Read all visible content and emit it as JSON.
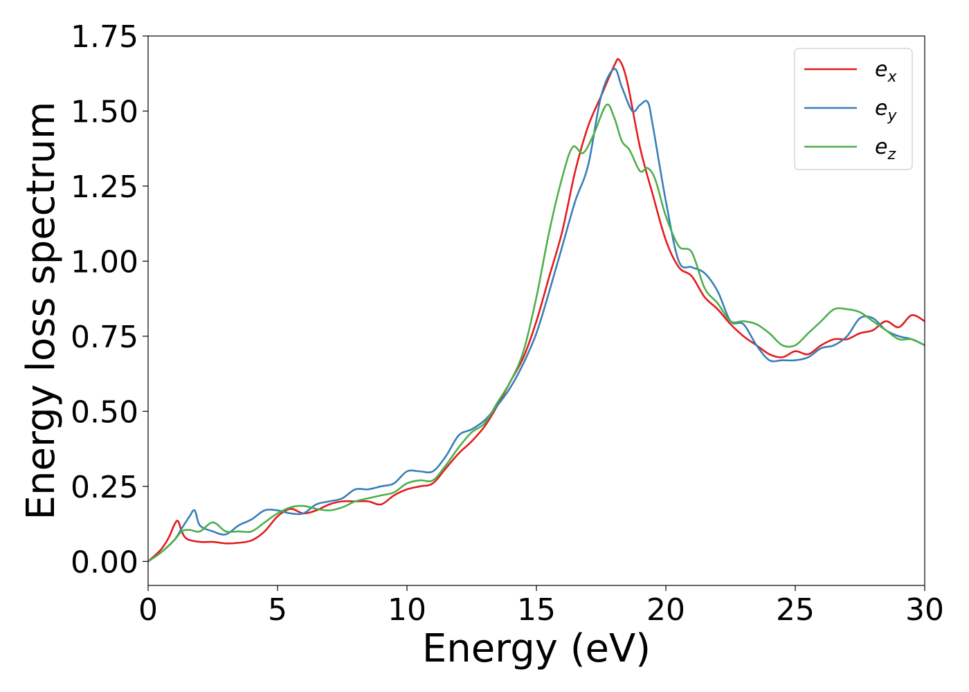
{
  "chart_data": {
    "type": "line",
    "title": "",
    "xlabel": "Energy (eV)",
    "ylabel": "Energy loss spectrum",
    "xlim": [
      0,
      30
    ],
    "ylim": [
      -0.08,
      1.75
    ],
    "xticks": [
      0,
      5,
      10,
      15,
      20,
      25,
      30
    ],
    "xtick_labels": [
      "0",
      "5",
      "10",
      "15",
      "20",
      "25",
      "30"
    ],
    "yticks": [
      0.0,
      0.25,
      0.5,
      0.75,
      1.0,
      1.25,
      1.5,
      1.75
    ],
    "ytick_labels": [
      "0.00",
      "0.25",
      "0.50",
      "0.75",
      "1.00",
      "1.25",
      "1.50",
      "1.75"
    ],
    "grid": false,
    "legend_position": "top-right",
    "series": [
      {
        "name": "e_x",
        "legend_base": "e",
        "legend_sub": "x",
        "color": "#e41a1c",
        "x": [
          0,
          0.5,
          0.8,
          1.0,
          1.15,
          1.3,
          1.5,
          2.0,
          2.5,
          3.0,
          3.5,
          4.0,
          4.5,
          5.0,
          5.5,
          6.0,
          6.5,
          7.0,
          7.5,
          8.0,
          8.5,
          9.0,
          9.5,
          10.0,
          10.5,
          11.0,
          11.5,
          12.0,
          12.5,
          13.0,
          13.5,
          14.0,
          14.5,
          15.0,
          15.5,
          16.0,
          16.5,
          17.0,
          17.5,
          18.0,
          18.2,
          18.5,
          19.0,
          19.5,
          20.0,
          20.5,
          21.0,
          21.5,
          22.0,
          22.5,
          23.0,
          23.5,
          24.0,
          24.5,
          25.0,
          25.5,
          26.0,
          26.5,
          27.0,
          27.5,
          28.0,
          28.5,
          29.0,
          29.5,
          30.0
        ],
        "y": [
          0.0,
          0.04,
          0.08,
          0.12,
          0.135,
          0.1,
          0.075,
          0.065,
          0.065,
          0.06,
          0.062,
          0.07,
          0.1,
          0.15,
          0.175,
          0.16,
          0.17,
          0.19,
          0.2,
          0.2,
          0.2,
          0.19,
          0.22,
          0.24,
          0.25,
          0.26,
          0.31,
          0.36,
          0.4,
          0.45,
          0.52,
          0.6,
          0.68,
          0.8,
          0.95,
          1.1,
          1.3,
          1.45,
          1.55,
          1.65,
          1.67,
          1.6,
          1.38,
          1.22,
          1.07,
          0.98,
          0.95,
          0.88,
          0.84,
          0.79,
          0.75,
          0.72,
          0.69,
          0.68,
          0.7,
          0.69,
          0.72,
          0.74,
          0.74,
          0.76,
          0.77,
          0.8,
          0.78,
          0.82,
          0.8
        ]
      },
      {
        "name": "e_y",
        "legend_base": "e",
        "legend_sub": "y",
        "color": "#377eb8",
        "x": [
          0,
          0.5,
          1.0,
          1.3,
          1.6,
          1.8,
          2.0,
          2.5,
          3.0,
          3.5,
          4.0,
          4.5,
          5.0,
          5.5,
          6.0,
          6.5,
          7.0,
          7.5,
          8.0,
          8.5,
          9.0,
          9.5,
          10.0,
          10.5,
          11.0,
          11.5,
          12.0,
          12.5,
          13.0,
          13.5,
          14.0,
          14.5,
          15.0,
          15.5,
          16.0,
          16.5,
          17.0,
          17.5,
          18.0,
          18.3,
          18.7,
          19.0,
          19.3,
          19.5,
          20.0,
          20.5,
          21.0,
          21.5,
          22.0,
          22.5,
          23.0,
          23.5,
          24.0,
          24.5,
          25.0,
          25.5,
          26.0,
          26.5,
          27.0,
          27.5,
          28.0,
          28.5,
          29.0,
          29.5,
          30.0
        ],
        "y": [
          0.0,
          0.03,
          0.07,
          0.11,
          0.15,
          0.17,
          0.12,
          0.1,
          0.09,
          0.12,
          0.14,
          0.17,
          0.17,
          0.16,
          0.16,
          0.19,
          0.2,
          0.21,
          0.24,
          0.24,
          0.25,
          0.26,
          0.3,
          0.3,
          0.3,
          0.35,
          0.42,
          0.44,
          0.47,
          0.52,
          0.58,
          0.66,
          0.76,
          0.9,
          1.05,
          1.2,
          1.32,
          1.55,
          1.64,
          1.58,
          1.5,
          1.52,
          1.53,
          1.45,
          1.2,
          1.0,
          0.98,
          0.96,
          0.9,
          0.8,
          0.79,
          0.72,
          0.67,
          0.67,
          0.67,
          0.68,
          0.71,
          0.72,
          0.75,
          0.81,
          0.81,
          0.77,
          0.75,
          0.74,
          0.72
        ]
      },
      {
        "name": "e_z",
        "legend_base": "e",
        "legend_sub": "z",
        "color": "#4daf4a",
        "x": [
          0,
          0.5,
          1.0,
          1.3,
          1.6,
          2.0,
          2.5,
          3.0,
          3.5,
          4.0,
          4.5,
          5.0,
          5.5,
          6.0,
          6.5,
          7.0,
          7.5,
          8.0,
          8.5,
          9.0,
          9.5,
          10.0,
          10.5,
          11.0,
          11.5,
          12.0,
          12.5,
          13.0,
          13.5,
          14.0,
          14.5,
          15.0,
          15.5,
          16.0,
          16.4,
          16.8,
          17.2,
          17.7,
          18.0,
          18.3,
          18.6,
          19.0,
          19.3,
          19.6,
          20.0,
          20.5,
          21.0,
          21.5,
          22.0,
          22.5,
          23.0,
          23.5,
          24.0,
          24.5,
          25.0,
          25.5,
          26.0,
          26.5,
          27.0,
          27.5,
          28.0,
          28.5,
          29.0,
          29.5,
          30.0
        ],
        "y": [
          0.0,
          0.03,
          0.07,
          0.1,
          0.105,
          0.1,
          0.13,
          0.1,
          0.1,
          0.1,
          0.13,
          0.16,
          0.18,
          0.185,
          0.175,
          0.17,
          0.18,
          0.2,
          0.21,
          0.22,
          0.23,
          0.26,
          0.27,
          0.27,
          0.32,
          0.38,
          0.43,
          0.46,
          0.53,
          0.6,
          0.7,
          0.88,
          1.1,
          1.28,
          1.38,
          1.36,
          1.42,
          1.52,
          1.48,
          1.4,
          1.37,
          1.3,
          1.31,
          1.27,
          1.15,
          1.05,
          1.03,
          0.91,
          0.86,
          0.8,
          0.8,
          0.79,
          0.76,
          0.72,
          0.72,
          0.76,
          0.8,
          0.84,
          0.84,
          0.83,
          0.8,
          0.77,
          0.74,
          0.74,
          0.72
        ]
      }
    ]
  }
}
